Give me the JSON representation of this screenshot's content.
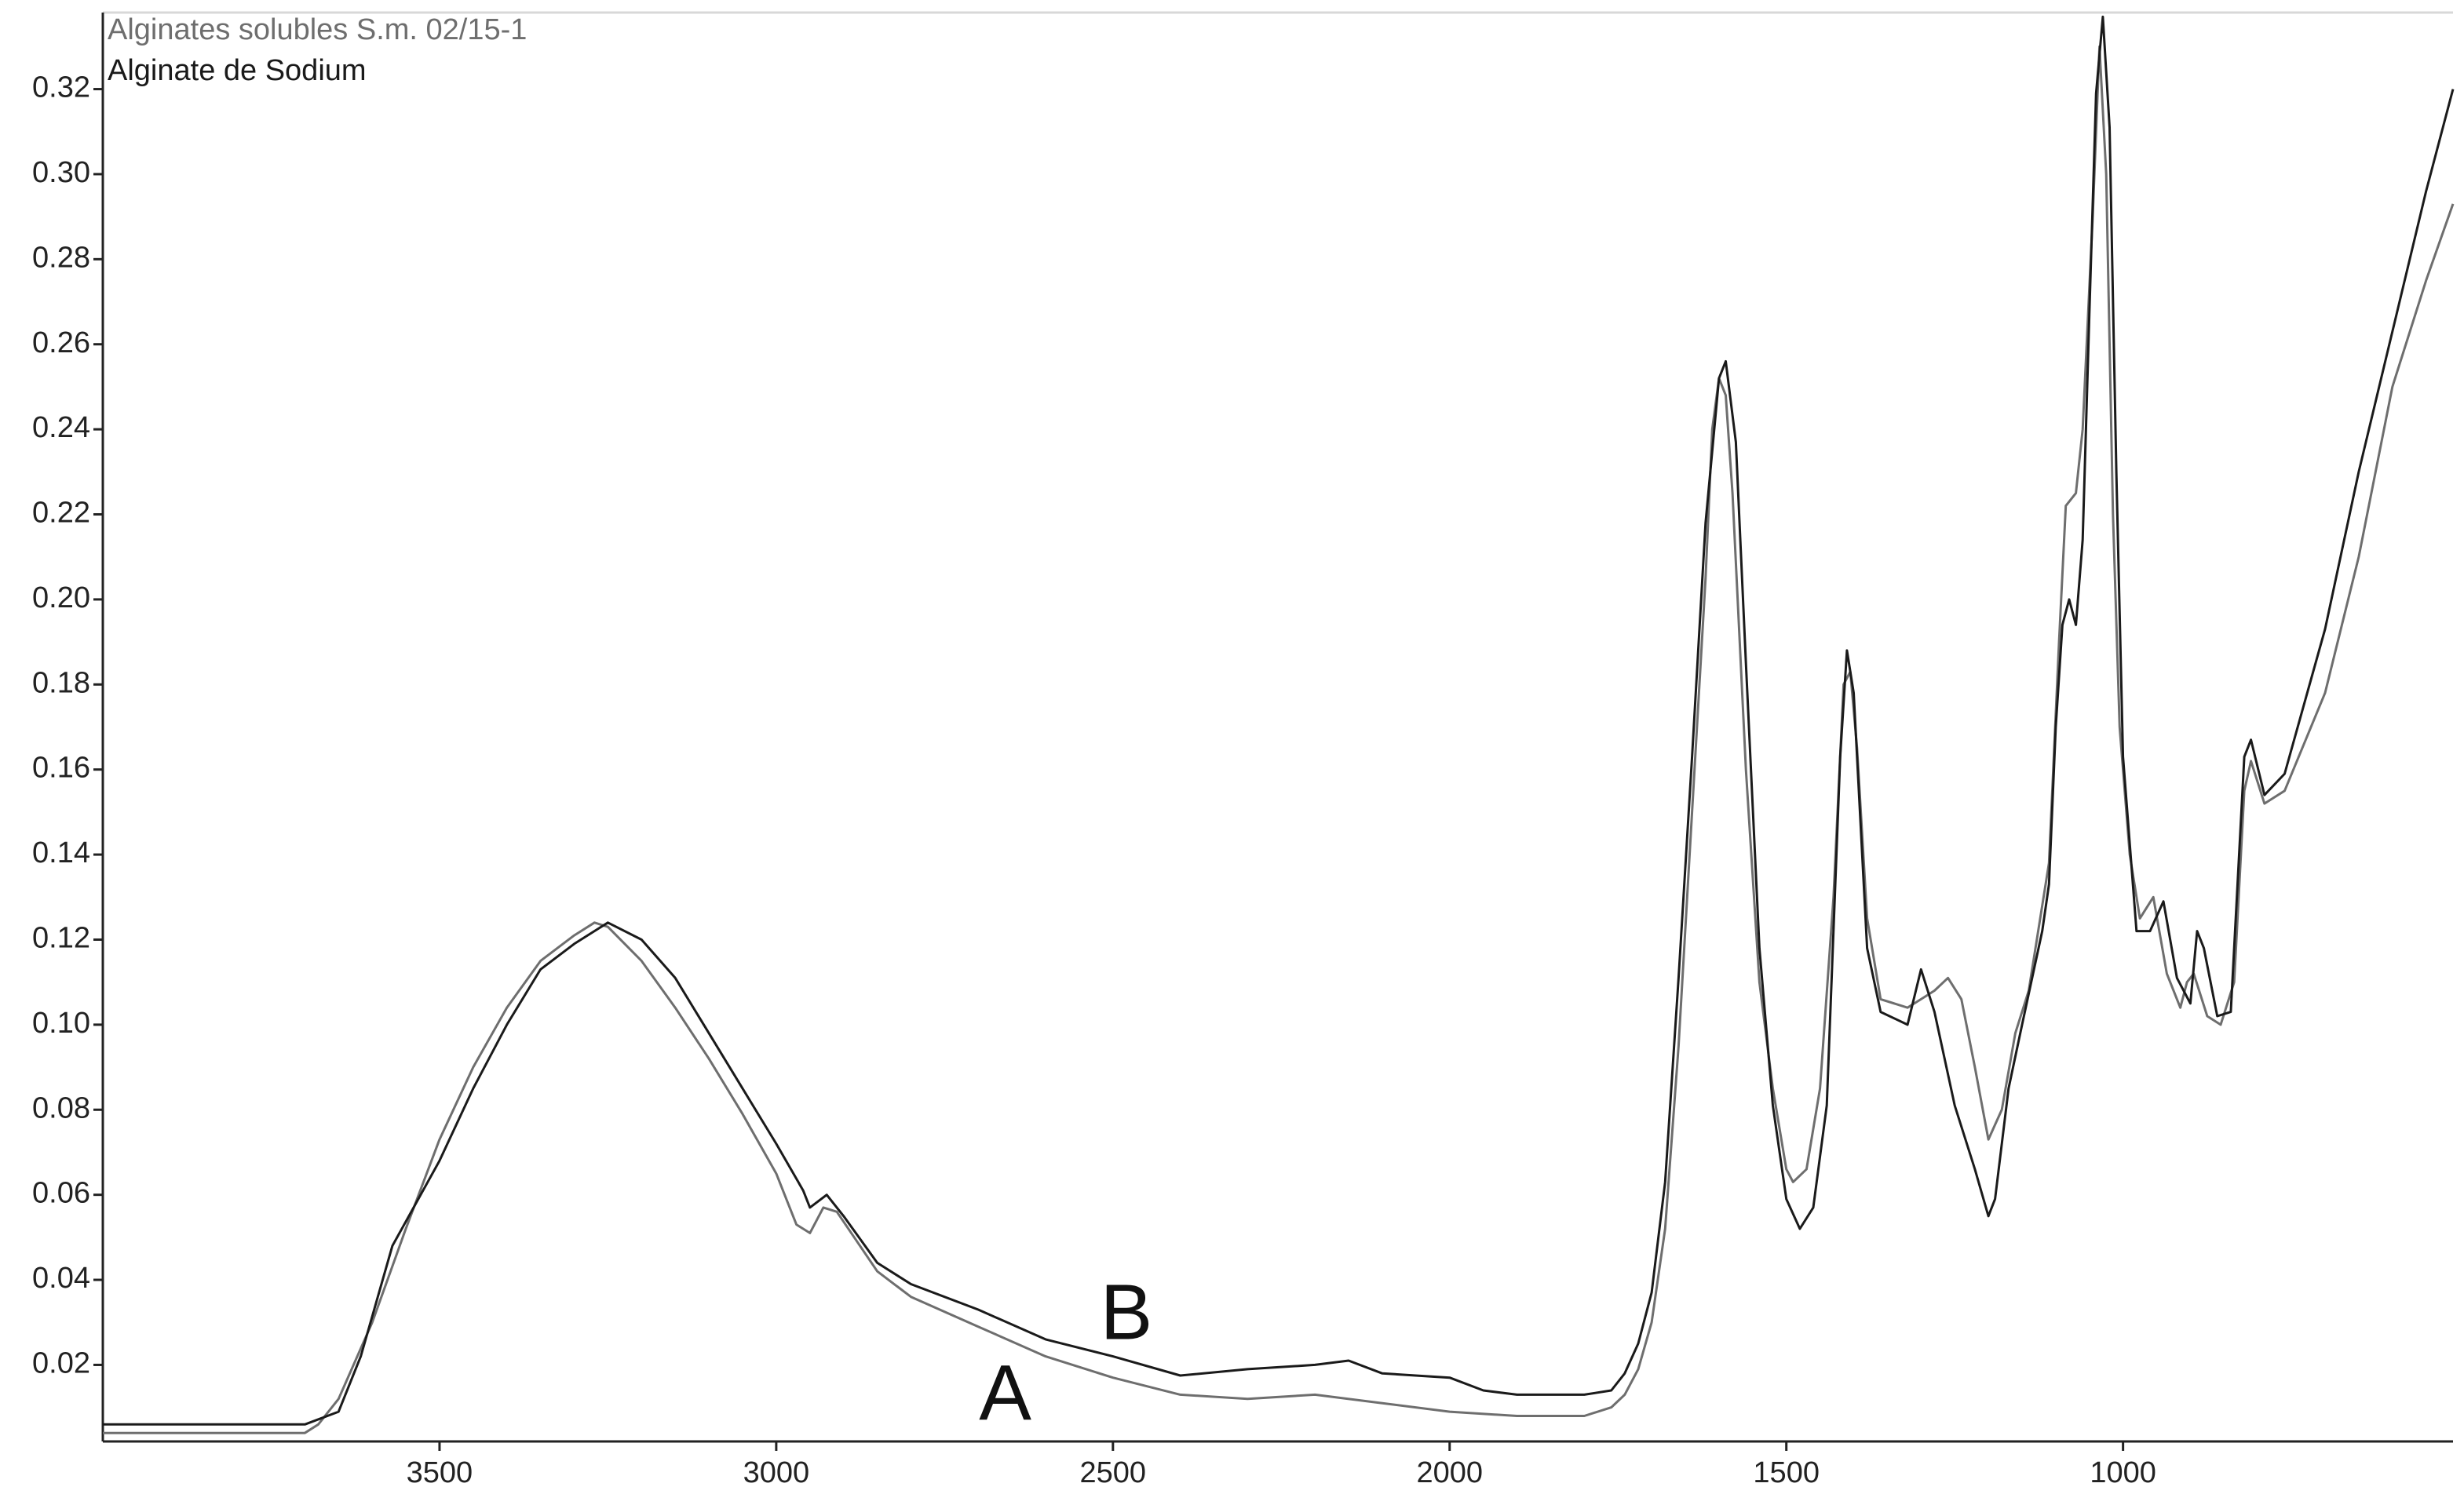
{
  "chart_data": {
    "type": "line",
    "xlim": [
      4000,
      510
    ],
    "ylim": [
      0.002,
      0.338
    ],
    "xticks": [
      3500,
      3000,
      2500,
      2000,
      1500,
      1000
    ],
    "yticks": [
      0.02,
      0.04,
      0.06,
      0.08,
      {
        "value": 0.1,
        "label": "0.10"
      },
      0.12,
      0.14,
      0.16,
      0.18,
      {
        "value": 0.2,
        "label": "0.20"
      },
      0.22,
      0.24,
      0.26,
      0.28,
      {
        "value": 0.3,
        "label": "0.30"
      },
      0.32
    ],
    "series": [
      {
        "name": "Alginates solubles S.m. 02/15-1",
        "color": "#6e6e6e",
        "x": [
          4000,
          3700,
          3680,
          3650,
          3600,
          3550,
          3500,
          3450,
          3400,
          3350,
          3300,
          3270,
          3250,
          3200,
          3150,
          3100,
          3050,
          3000,
          2970,
          2950,
          2930,
          2910,
          2850,
          2800,
          2700,
          2600,
          2500,
          2400,
          2300,
          2200,
          2100,
          2000,
          1900,
          1800,
          1760,
          1740,
          1720,
          1700,
          1680,
          1660,
          1640,
          1620,
          1610,
          1600,
          1590,
          1580,
          1560,
          1540,
          1520,
          1500,
          1490,
          1470,
          1450,
          1430,
          1415,
          1405,
          1395,
          1380,
          1360,
          1320,
          1300,
          1280,
          1260,
          1240,
          1220,
          1200,
          1180,
          1160,
          1140,
          1110,
          1095,
          1085,
          1070,
          1060,
          1045,
          1035,
          1025,
          1015,
          1005,
          990,
          975,
          955,
          935,
          915,
          905,
          895,
          875,
          855,
          835,
          820,
          810,
          790,
          760,
          700,
          650,
          600,
          550,
          510
        ],
        "values": [
          0.004,
          0.004,
          0.006,
          0.012,
          0.03,
          0.052,
          0.073,
          0.09,
          0.104,
          0.115,
          0.121,
          0.124,
          0.123,
          0.115,
          0.104,
          0.092,
          0.079,
          0.065,
          0.053,
          0.051,
          0.057,
          0.056,
          0.042,
          0.036,
          0.029,
          0.022,
          0.017,
          0.013,
          0.012,
          0.013,
          0.011,
          0.009,
          0.008,
          0.008,
          0.01,
          0.013,
          0.019,
          0.03,
          0.052,
          0.095,
          0.15,
          0.205,
          0.24,
          0.252,
          0.248,
          0.225,
          0.16,
          0.11,
          0.085,
          0.066,
          0.063,
          0.066,
          0.085,
          0.13,
          0.18,
          0.183,
          0.165,
          0.125,
          0.106,
          0.104,
          0.106,
          0.108,
          0.111,
          0.106,
          0.09,
          0.073,
          0.08,
          0.098,
          0.108,
          0.138,
          0.19,
          0.222,
          0.225,
          0.24,
          0.29,
          0.33,
          0.3,
          0.22,
          0.17,
          0.14,
          0.125,
          0.13,
          0.112,
          0.104,
          0.11,
          0.112,
          0.102,
          0.1,
          0.11,
          0.155,
          0.162,
          0.152,
          0.155,
          0.178,
          0.21,
          0.25,
          0.275,
          0.293
        ]
      },
      {
        "name": "Alginate de Sodium",
        "color": "#1a1a1a",
        "x": [
          4000,
          3700,
          3650,
          3617,
          3570,
          3500,
          3450,
          3400,
          3350,
          3300,
          3250,
          3200,
          3150,
          3100,
          3050,
          3000,
          2960,
          2950,
          2925,
          2900,
          2850,
          2800,
          2700,
          2600,
          2500,
          2400,
          2300,
          2200,
          2150,
          2100,
          2000,
          1950,
          1900,
          1800,
          1760,
          1740,
          1720,
          1700,
          1680,
          1660,
          1640,
          1620,
          1600,
          1590,
          1575,
          1560,
          1540,
          1520,
          1500,
          1480,
          1460,
          1440,
          1420,
          1410,
          1400,
          1380,
          1360,
          1320,
          1300,
          1280,
          1250,
          1220,
          1200,
          1190,
          1170,
          1150,
          1120,
          1110,
          1100,
          1090,
          1080,
          1070,
          1060,
          1050,
          1040,
          1030,
          1020,
          1010,
          1000,
          980,
          960,
          940,
          920,
          900,
          890,
          880,
          860,
          840,
          820,
          810,
          790,
          760,
          700,
          650,
          600,
          550,
          510
        ],
        "values": [
          0.006,
          0.006,
          0.009,
          0.022,
          0.048,
          0.068,
          0.085,
          0.1,
          0.113,
          0.119,
          0.124,
          0.12,
          0.111,
          0.098,
          0.085,
          0.072,
          0.061,
          0.057,
          0.06,
          0.055,
          0.044,
          0.039,
          0.033,
          0.026,
          0.022,
          0.0175,
          0.019,
          0.02,
          0.021,
          0.018,
          0.017,
          0.014,
          0.013,
          0.013,
          0.014,
          0.018,
          0.025,
          0.037,
          0.063,
          0.111,
          0.163,
          0.218,
          0.252,
          0.256,
          0.237,
          0.185,
          0.118,
          0.081,
          0.059,
          0.052,
          0.057,
          0.081,
          0.163,
          0.188,
          0.178,
          0.118,
          0.103,
          0.1,
          0.113,
          0.103,
          0.081,
          0.066,
          0.055,
          0.059,
          0.085,
          0.1,
          0.122,
          0.133,
          0.17,
          0.194,
          0.2,
          0.194,
          0.214,
          0.267,
          0.319,
          0.337,
          0.311,
          0.23,
          0.163,
          0.122,
          0.122,
          0.129,
          0.111,
          0.105,
          0.122,
          0.118,
          0.102,
          0.103,
          0.163,
          0.167,
          0.154,
          0.159,
          0.193,
          0.23,
          0.263,
          0.296,
          0.32
        ]
      }
    ],
    "annotations": [
      {
        "text": "B",
        "x": 2480,
        "y": 0.031
      },
      {
        "text": "A",
        "x": 2660,
        "y": 0.012
      }
    ]
  }
}
